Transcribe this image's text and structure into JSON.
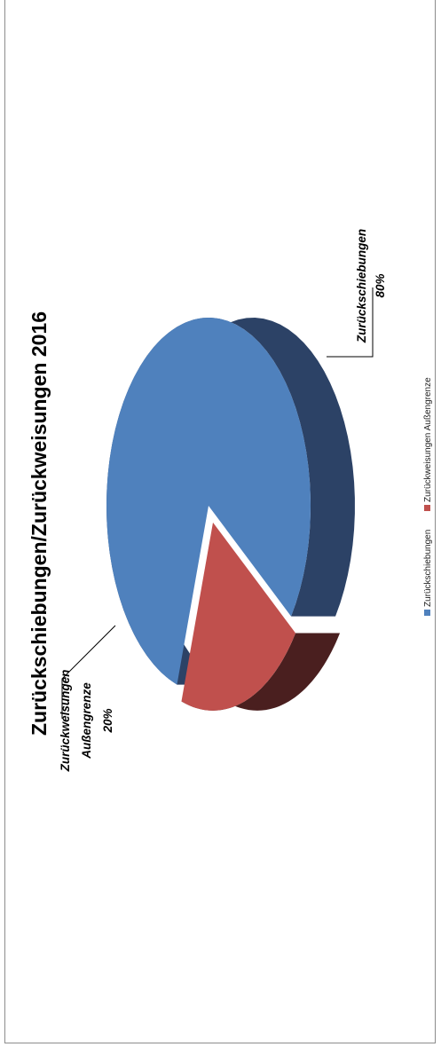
{
  "chart_data": {
    "type": "pie",
    "title": "Zurückschiebungen/Zurückweisungen 2016",
    "slices": [
      {
        "name": "Zurückschiebungen",
        "value": 80,
        "label": "80%",
        "color": "#4f81bd",
        "side_color": "#2c4266"
      },
      {
        "name": "Zurückweisungen Außengrenze",
        "value": 20,
        "label": "20%",
        "color": "#c0504d",
        "side_color": "#4a1f1f"
      }
    ],
    "data_labels": [
      {
        "name": "Zurückschiebungen",
        "value": "80%"
      },
      {
        "name_lines": [
          "Zurückweisungen",
          "Außengrenze"
        ],
        "value": "20%"
      }
    ],
    "legend": {
      "placement": "bottom",
      "entries": [
        "Zurückschiebungen",
        "Zurückweisungen Außengrenze"
      ]
    },
    "exploded": true,
    "three_d": true
  }
}
